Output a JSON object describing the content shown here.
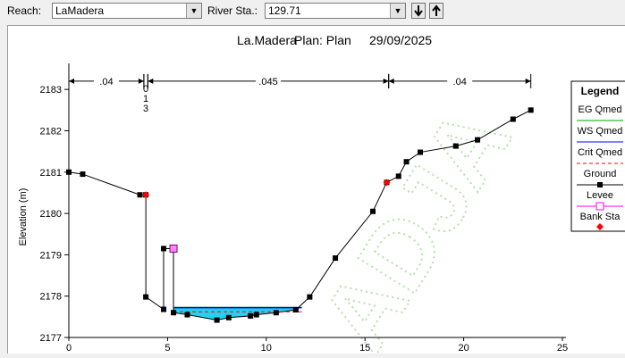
{
  "toolbar": {
    "reach_label": "Reach:",
    "reach_value": "LaMadera",
    "station_label": "River Sta.:",
    "station_value": "129.71",
    "down_icon": "arrow-down-icon",
    "up_icon": "arrow-up-icon"
  },
  "chart_data": {
    "type": "line",
    "title": "La.Madera",
    "plan_label": "Plan: Plan",
    "date": "29/09/2025",
    "xlabel": "",
    "ylabel": "Elevation (m)",
    "xlim": [
      0,
      25
    ],
    "ylim": [
      2177,
      2183.5
    ],
    "x_ticks": [
      "0",
      "5",
      "10",
      "15",
      "20",
      "25"
    ],
    "y_ticks": [
      "2177",
      "2178",
      "2179",
      "2180",
      "2181",
      "2182",
      "2183"
    ],
    "mannings": [
      {
        "label": ".04",
        "from": 0,
        "to": 3.8
      },
      {
        "label": "0\n1\n3",
        "from": 3.8,
        "to": 4.0
      },
      {
        "label": ".045",
        "from": 4.0,
        "to": 16.2
      },
      {
        "label": ".04",
        "from": 16.2,
        "to": 23.4
      }
    ],
    "ground": [
      [
        0,
        2181
      ],
      [
        0.7,
        2180.95
      ],
      [
        3.6,
        2180.45
      ],
      [
        3.9,
        2180.45
      ],
      [
        3.9,
        2177.98
      ],
      [
        4.8,
        2177.68
      ],
      [
        4.8,
        2179.15
      ],
      [
        5.3,
        2179.15
      ],
      [
        5.3,
        2177.6
      ],
      [
        6.0,
        2177.55
      ],
      [
        7.5,
        2177.42
      ],
      [
        8.1,
        2177.48
      ],
      [
        9.2,
        2177.52
      ],
      [
        9.5,
        2177.55
      ],
      [
        10.5,
        2177.6
      ],
      [
        11.5,
        2177.67
      ],
      [
        12.2,
        2177.98
      ],
      [
        13.5,
        2178.92
      ],
      [
        15.4,
        2180.05
      ],
      [
        16.1,
        2180.75
      ],
      [
        16.7,
        2180.9
      ],
      [
        17.1,
        2181.25
      ],
      [
        17.8,
        2181.48
      ],
      [
        19.6,
        2181.63
      ],
      [
        20.7,
        2181.78
      ],
      [
        22.5,
        2182.28
      ],
      [
        23.4,
        2182.5
      ]
    ],
    "ws_elevation": 2177.72,
    "crit_elevation": 2177.62,
    "eg_elevation": 2177.73,
    "bank_stations": [
      [
        3.9,
        2180.45
      ],
      [
        16.1,
        2180.75
      ]
    ],
    "levees": [
      [
        5.3,
        2179.15
      ]
    ],
    "legend": {
      "title": "Legend",
      "items": [
        {
          "name": "EG Qmed",
          "color": "#00a000",
          "style": "line"
        },
        {
          "name": "WS Qmed",
          "color": "#0000ff",
          "style": "line"
        },
        {
          "name": "Crit Qmed",
          "color": "#ff0000",
          "style": "dashed"
        },
        {
          "name": "Ground",
          "color": "#000000",
          "style": "square"
        },
        {
          "name": "Levee",
          "color": "#ff00ff",
          "style": "openSquare"
        },
        {
          "name": "Bank Sta",
          "color": "#ff0000",
          "style": "diamond"
        }
      ]
    },
    "watermark": "ADJA",
    "colors": {
      "water": "#22d3ee",
      "ws": "#0000ff",
      "crit": "#ff0000",
      "eg": "#00a000"
    }
  }
}
